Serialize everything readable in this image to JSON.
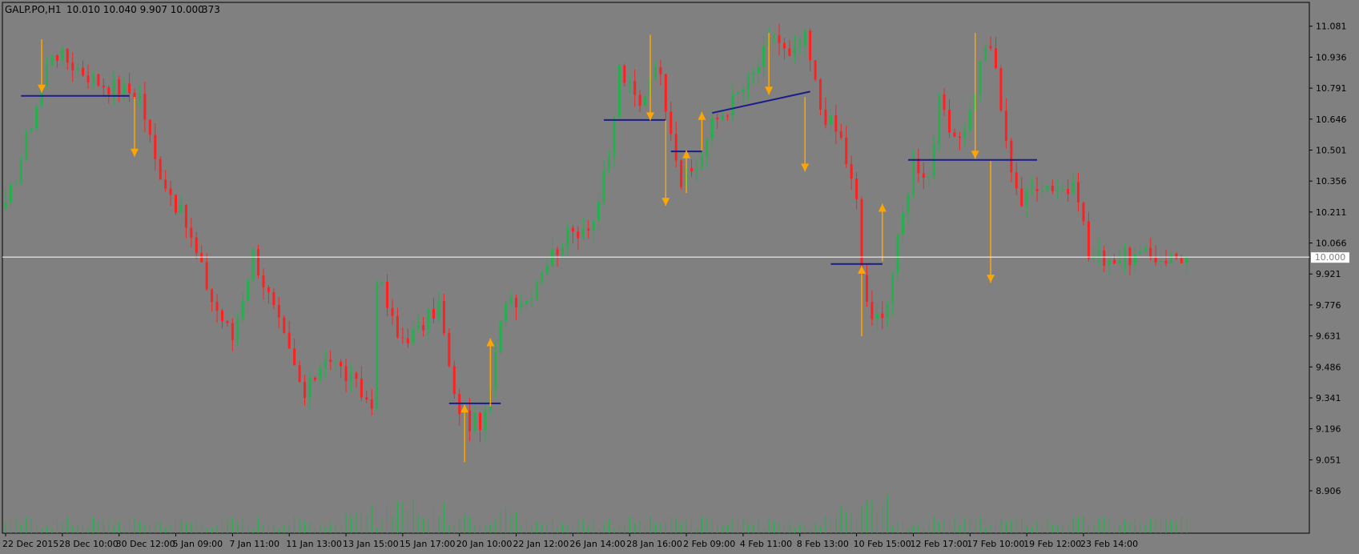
{
  "app": {
    "symbol_timeframe": "GALP.PO,H1",
    "ohlc_readout": "10.010 10.040 9.907 10.000",
    "volume_readout": "373"
  },
  "colors": {
    "background": "#808080",
    "bull": "#22b14c",
    "bear": "#ff2020",
    "trendline": "#1b1b8a",
    "arrow": "#ffa500",
    "price_line": "#ffffff",
    "axis_text": "#000000",
    "price_label_bg": "#ffffff",
    "price_label_fg": "#808080"
  },
  "chart_data": {
    "type": "candlestick",
    "y_axis": {
      "ylim": [
        8.82,
        11.11
      ],
      "ticks": [
        "11.081",
        "10.936",
        "10.791",
        "10.646",
        "10.501",
        "10.356",
        "10.211",
        "10.066",
        "9.921",
        "9.776",
        "9.631",
        "9.486",
        "9.341",
        "9.196",
        "9.051",
        "8.906"
      ],
      "current_price_label": "10.000",
      "current_price": 10.0
    },
    "x_axis": {
      "n_bars": 230,
      "ticks": [
        {
          "i": 0,
          "label": "22 Dec 2015"
        },
        {
          "i": 11,
          "label": "28 Dec 10:00"
        },
        {
          "i": 22,
          "label": "30 Dec 12:00"
        },
        {
          "i": 33,
          "label": "5 Jan 09:00"
        },
        {
          "i": 44,
          "label": "7 Jan 11:00"
        },
        {
          "i": 55,
          "label": "11 Jan 13:00"
        },
        {
          "i": 66,
          "label": "13 Jan 15:00"
        },
        {
          "i": 77,
          "label": "15 Jan 17:00"
        },
        {
          "i": 88,
          "label": "20 Jan 10:00"
        },
        {
          "i": 99,
          "label": "22 Jan 12:00"
        },
        {
          "i": 110,
          "label": "26 Jan 14:00"
        },
        {
          "i": 121,
          "label": "28 Jan 16:00"
        },
        {
          "i": 132,
          "label": "2 Feb 09:00"
        },
        {
          "i": 143,
          "label": "4 Feb 11:00"
        },
        {
          "i": 154,
          "label": "8 Feb 13:00"
        },
        {
          "i": 165,
          "label": "10 Feb 15:00"
        },
        {
          "i": 176,
          "label": "12 Feb 17:00"
        },
        {
          "i": 187,
          "label": "17 Feb 10:00"
        },
        {
          "i": 198,
          "label": "19 Feb 12:00"
        },
        {
          "i": 209,
          "label": "23 Feb 14:00"
        }
      ]
    },
    "close_path": [
      [
        0,
        10.22
      ],
      [
        4,
        10.55
      ],
      [
        9,
        10.97
      ],
      [
        18,
        10.82
      ],
      [
        26,
        10.76
      ],
      [
        29,
        10.45
      ],
      [
        35,
        10.15
      ],
      [
        40,
        9.8
      ],
      [
        44,
        9.62
      ],
      [
        48,
        10.02
      ],
      [
        53,
        9.68
      ],
      [
        58,
        9.34
      ],
      [
        62,
        9.55
      ],
      [
        67,
        9.42
      ],
      [
        71,
        9.3
      ],
      [
        72,
        9.92
      ],
      [
        76,
        9.62
      ],
      [
        80,
        9.65
      ],
      [
        84,
        9.78
      ],
      [
        87,
        9.33
      ],
      [
        90,
        9.22
      ],
      [
        93,
        9.24
      ],
      [
        97,
        9.82
      ],
      [
        101,
        9.8
      ],
      [
        104,
        9.95
      ],
      [
        108,
        10.08
      ],
      [
        114,
        10.18
      ],
      [
        117,
        10.45
      ],
      [
        119,
        10.88
      ],
      [
        123,
        10.7
      ],
      [
        126,
        10.93
      ],
      [
        129,
        10.62
      ],
      [
        131,
        10.35
      ],
      [
        134,
        10.42
      ],
      [
        137,
        10.62
      ],
      [
        140,
        10.7
      ],
      [
        145,
        10.85
      ],
      [
        149,
        11.05
      ],
      [
        152,
        10.92
      ],
      [
        155,
        11.02
      ],
      [
        158,
        10.7
      ],
      [
        162,
        10.55
      ],
      [
        165,
        10.25
      ],
      [
        166,
        9.92
      ],
      [
        168,
        9.68
      ],
      [
        171,
        9.8
      ],
      [
        174,
        10.2
      ],
      [
        176,
        10.45
      ],
      [
        179,
        10.38
      ],
      [
        181,
        10.72
      ],
      [
        184,
        10.52
      ],
      [
        187,
        10.68
      ],
      [
        190,
        11.01
      ],
      [
        192,
        10.88
      ],
      [
        194,
        10.52
      ],
      [
        197,
        10.25
      ],
      [
        200,
        10.35
      ],
      [
        204,
        10.33
      ],
      [
        208,
        10.3
      ],
      [
        210,
        10.0
      ]
    ],
    "volume_max": 60,
    "horizontal_levels": [
      {
        "from": 3,
        "to": 24,
        "price": 10.755
      },
      {
        "from": 86,
        "to": 96,
        "price": 9.315
      },
      {
        "from": 116,
        "to": 128,
        "price": 10.642
      },
      {
        "from": 129,
        "to": 135,
        "price": 10.495
      },
      {
        "from": 160,
        "to": 170,
        "price": 9.968
      },
      {
        "from": 175,
        "to": 200,
        "price": 10.455
      }
    ],
    "sloped_levels": [
      {
        "from": 137,
        "to": 156,
        "price_from": 10.675,
        "price_to": 10.775
      }
    ],
    "arrows": [
      {
        "i": 7,
        "from": 11.02,
        "to": 10.77,
        "dir": "down"
      },
      {
        "i": 25,
        "from": 10.75,
        "to": 10.47,
        "dir": "down"
      },
      {
        "i": 89,
        "from": 9.04,
        "to": 9.31,
        "dir": "up"
      },
      {
        "i": 94,
        "from": 9.3,
        "to": 9.62,
        "dir": "up"
      },
      {
        "i": 125,
        "from": 11.04,
        "to": 10.64,
        "dir": "down"
      },
      {
        "i": 128,
        "from": 10.64,
        "to": 10.24,
        "dir": "down"
      },
      {
        "i": 132,
        "from": 10.3,
        "to": 10.5,
        "dir": "up"
      },
      {
        "i": 135,
        "from": 10.5,
        "to": 10.68,
        "dir": "up"
      },
      {
        "i": 148,
        "from": 11.05,
        "to": 10.76,
        "dir": "down"
      },
      {
        "i": 155,
        "from": 10.75,
        "to": 10.4,
        "dir": "down"
      },
      {
        "i": 166,
        "from": 9.63,
        "to": 9.96,
        "dir": "up"
      },
      {
        "i": 170,
        "from": 9.98,
        "to": 10.25,
        "dir": "up"
      },
      {
        "i": 188,
        "from": 11.05,
        "to": 10.46,
        "dir": "down"
      },
      {
        "i": 191,
        "from": 10.45,
        "to": 9.88,
        "dir": "down"
      }
    ]
  }
}
